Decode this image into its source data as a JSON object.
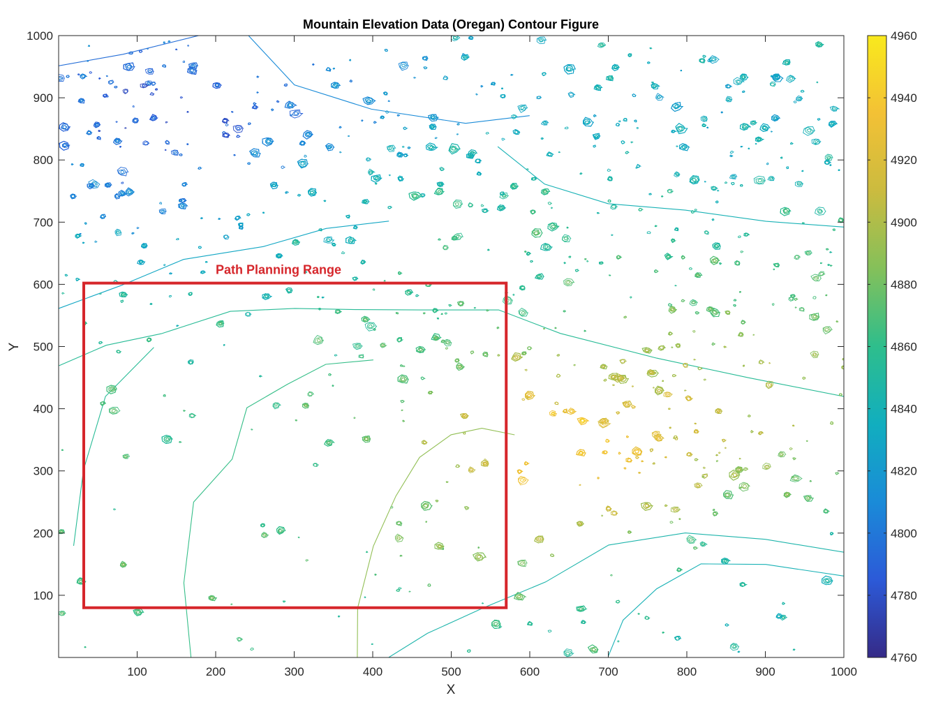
{
  "chart_data": {
    "type": "contour",
    "title": "Mountain Elevation Data (Oregan) Contour Figure",
    "xlabel": "X",
    "ylabel": "Y",
    "xlim": [
      0,
      1000
    ],
    "ylim": [
      0,
      1000
    ],
    "xticks": [
      100,
      200,
      300,
      400,
      500,
      600,
      700,
      800,
      900,
      1000
    ],
    "yticks": [
      100,
      200,
      300,
      400,
      500,
      600,
      700,
      800,
      900,
      1000
    ],
    "grid": false,
    "colormap": "parula",
    "colorbar": {
      "range": [
        4760,
        4960
      ],
      "ticks": [
        4760,
        4780,
        4800,
        4820,
        4840,
        4860,
        4880,
        4900,
        4920,
        4940,
        4960
      ],
      "placement": "right",
      "colors": [
        "#352a87",
        "#2c5ad8",
        "#1a8bd8",
        "#11aebf",
        "#2ebe8c",
        "#84c05a",
        "#cbbb3f",
        "#f3c135",
        "#f9e91d"
      ]
    },
    "elevation_bands": [
      {
        "region": "upper-left (x 0-300, y 650-1000)",
        "elevation": 4790
      },
      {
        "region": "upper-center (x 300-700, y 800-1000)",
        "elevation": 4820
      },
      {
        "region": "upper-right (x 750-1000, y 750-1000)",
        "elevation": 4830
      },
      {
        "region": "center (x 300-700, y 500-650)",
        "elevation": 4860
      },
      {
        "region": "center-right (x 700-1000, y 350-600)",
        "elevation": 4890
      },
      {
        "region": "middle (x 500-750, y 200-450)",
        "elevation": 4930
      },
      {
        "region": "lower-left (x 0-250, y 0-450)",
        "elevation": 4860
      },
      {
        "region": "lower-right (x 750-1000, y 0-250)",
        "elevation": 4840
      }
    ],
    "annotations": [
      {
        "label": "Path Planning Range",
        "color": "#d6262b",
        "x_range": [
          32,
          570
        ],
        "y_range": [
          80,
          602
        ]
      }
    ]
  }
}
